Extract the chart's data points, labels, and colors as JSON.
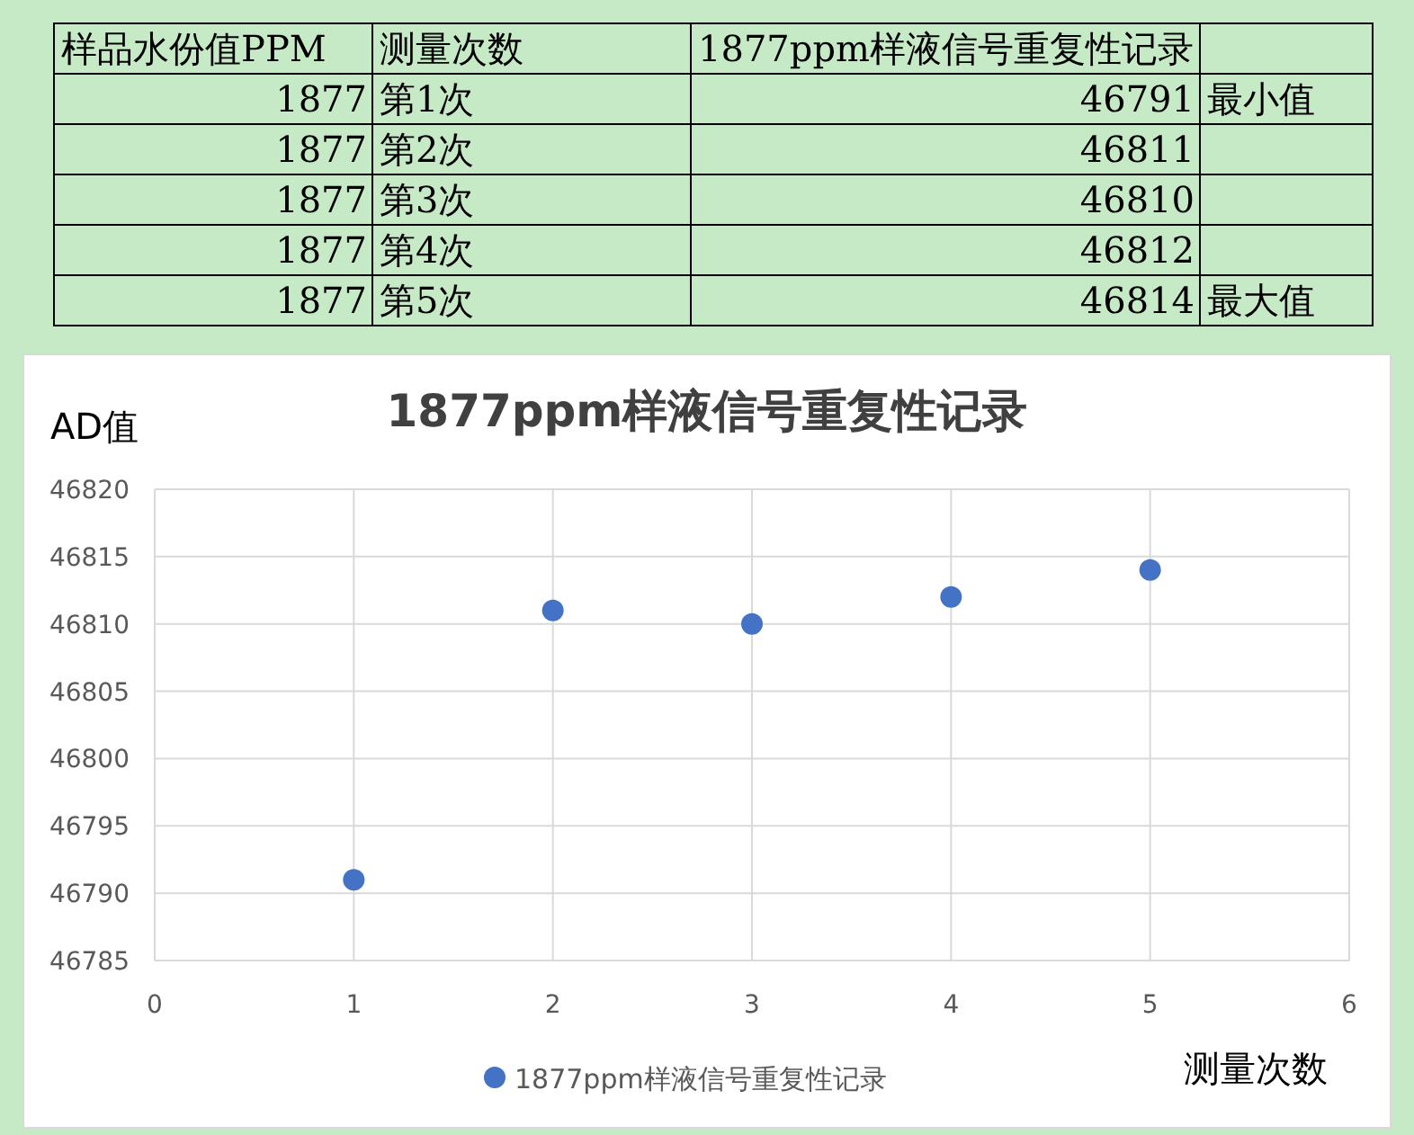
{
  "chart_data": {
    "type": "scatter",
    "title": "1877ppm样液信号重复性记录",
    "xlabel": "测量次数",
    "ylabel": "AD值",
    "x": [
      1,
      2,
      3,
      4,
      5
    ],
    "series": [
      {
        "name": "1877ppm样液信号重复性记录",
        "color": "#4472c4",
        "values": [
          46791,
          46811,
          46810,
          46812,
          46814
        ]
      }
    ],
    "xlim": [
      0,
      6
    ],
    "xticks": [
      0,
      1,
      2,
      3,
      4,
      5,
      6
    ],
    "ylim": [
      46785,
      46820
    ],
    "yticks": [
      46785,
      46790,
      46795,
      46800,
      46805,
      46810,
      46815,
      46820
    ],
    "grid": true,
    "legend": "bottom",
    "marker": "circle",
    "annotations": [
      "样品水份值PPM",
      "测量次数",
      "1877",
      "第1次",
      "46791",
      "1877",
      "第2次",
      "46811",
      "1877",
      "第3次",
      "46810",
      "1877",
      "第4次",
      "46812",
      "1877",
      "第5次",
      "46814",
      "最小值",
      "最大值"
    ]
  }
}
